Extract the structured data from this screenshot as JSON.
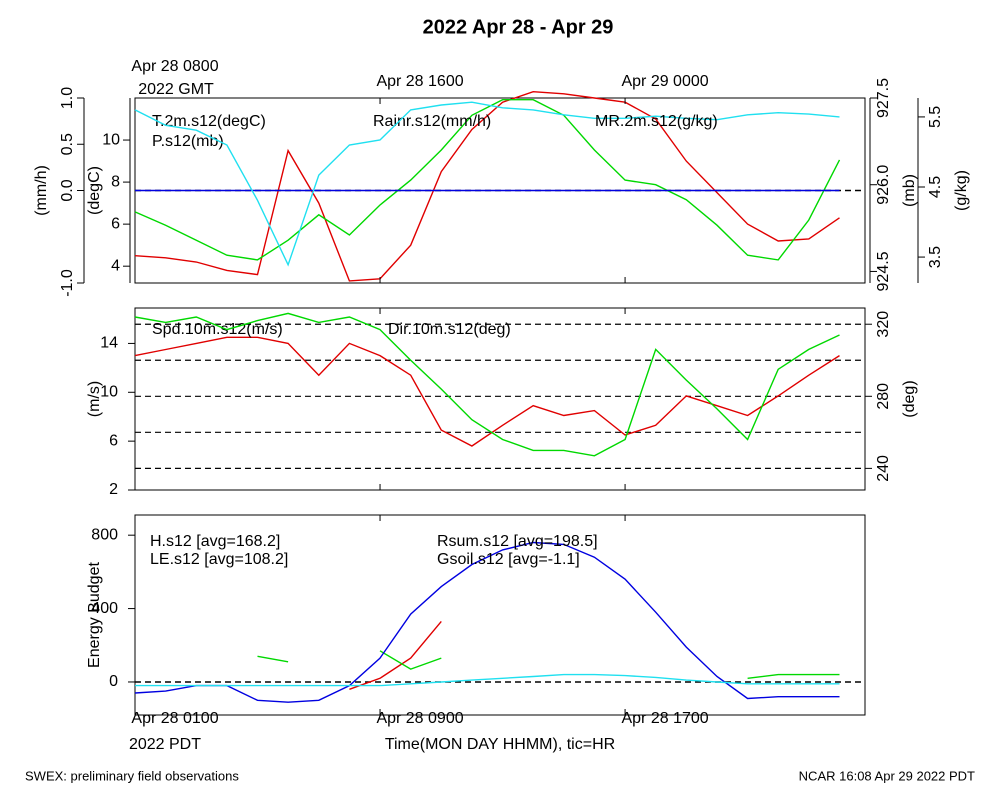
{
  "title": "2022 Apr 28 - Apr 29",
  "xlabel": "Time(MON DAY HHMM), tic=HR",
  "time_zone": "2022 PDT",
  "top_time_zone": "2022 GMT",
  "footer_left": "SWEX: preliminary field observations",
  "footer_right": "NCAR 16:08 Apr 29 2022 PDT",
  "xlim": [
    "Apr 28 0100",
    "Apr 29 0050"
  ],
  "xticks": [
    "Apr 28 0100",
    "Apr 28 0900",
    "Apr 28 1700"
  ],
  "top_xticks": [
    {
      "value": "Apr 28 0100",
      "label": "Apr 28 0800"
    },
    {
      "value": "Apr 28 0900",
      "label": "Apr 28 1600"
    },
    {
      "value": "Apr 28 1700",
      "label": "Apr 29 0000"
    }
  ],
  "chart_data": [
    {
      "type": "line",
      "x": [
        "Apr 28 0100",
        "Apr 28 0200",
        "Apr 28 0300",
        "Apr 28 0400",
        "Apr 28 0500",
        "Apr 28 0600",
        "Apr 28 0700",
        "Apr 28 0800",
        "Apr 28 0900",
        "Apr 28 1000",
        "Apr 28 1100",
        "Apr 28 1200",
        "Apr 28 1300",
        "Apr 28 1400",
        "Apr 28 1500",
        "Apr 28 1600",
        "Apr 28 1700",
        "Apr 28 1800",
        "Apr 28 1900",
        "Apr 28 2000",
        "Apr 28 2100",
        "Apr 28 2200",
        "Apr 28 2300",
        "Apr 29 0000"
      ],
      "axes": [
        {
          "label": "(mm/h)",
          "ylim": [
            -1,
            1
          ],
          "yticks": [
            {
              "value": -1,
              "label": "-1.0"
            },
            {
              "value": 0,
              "label": "0.0"
            },
            0.5,
            {
              "value": 1,
              "label": "1.0"
            }
          ]
        },
        {
          "label": "(degC)",
          "ylim": [
            3.2,
            12
          ],
          "yticks": [
            4,
            6,
            8,
            10
          ]
        },
        {
          "label": "(mb)",
          "ylim": [
            924.3,
            927.5
          ],
          "yticks": [
            924.5,
            {
              "value": 926,
              "label": "926.0"
            },
            927.5
          ]
        },
        {
          "label": "(g/kg)",
          "ylim": [
            3.13,
            5.77
          ],
          "yticks": [
            3.5,
            4.5,
            5.5
          ]
        }
      ],
      "hlines": [
        {
          "axis": 0,
          "value": 0
        }
      ],
      "series": [
        {
          "name": "T.2m.s12(degC)",
          "color": "#e00000",
          "axis": 1,
          "values": [
            4.5,
            4.4,
            4.2,
            3.8,
            3.6,
            9.5,
            7,
            3.3,
            3.4,
            5,
            8.5,
            10.5,
            11.8,
            12.3,
            12.2,
            12,
            11.8,
            11,
            9,
            7.5,
            6,
            5.2,
            5.3,
            6.3
          ]
        },
        {
          "name": "P.s12(mb)",
          "color": "#00d800",
          "axis": 2,
          "values": [
            925.53,
            925.3,
            925.04,
            924.78,
            924.7,
            925.04,
            925.48,
            925.13,
            925.65,
            926.08,
            926.6,
            927.2,
            927.47,
            927.47,
            927.2,
            926.6,
            926.08,
            926,
            925.74,
            925.3,
            924.78,
            924.7,
            925.39,
            926.43
          ]
        },
        {
          "name": "Rainr.s12(mm/h)",
          "color": "#0000e0",
          "axis": 0,
          "values": [
            0,
            0,
            0,
            0,
            0,
            0,
            0,
            0,
            0,
            0,
            0,
            0,
            0,
            0,
            0,
            0,
            0,
            0,
            0,
            0,
            0,
            0,
            0,
            0
          ]
        },
        {
          "name": "MR.2m.s12(g/kg)",
          "color": "#20e0f0",
          "axis": 3,
          "values": [
            5.6,
            5.38,
            5.31,
            5.1,
            4.31,
            3.39,
            4.67,
            5.1,
            5.17,
            5.6,
            5.67,
            5.71,
            5.63,
            5.6,
            5.53,
            5.48,
            5.48,
            5.51,
            5.48,
            5.46,
            5.53,
            5.56,
            5.54,
            5.5
          ]
        }
      ]
    },
    {
      "type": "line",
      "x": [
        "Apr 28 0100",
        "Apr 28 0200",
        "Apr 28 0300",
        "Apr 28 0400",
        "Apr 28 0500",
        "Apr 28 0600",
        "Apr 28 0700",
        "Apr 28 0800",
        "Apr 28 0900",
        "Apr 28 1000",
        "Apr 28 1100",
        "Apr 28 1200",
        "Apr 28 1300",
        "Apr 28 1400",
        "Apr 28 1500",
        "Apr 28 1600",
        "Apr 28 1700",
        "Apr 28 1800",
        "Apr 28 1900",
        "Apr 28 2000",
        "Apr 28 2100",
        "Apr 28 2200",
        "Apr 28 2300",
        "Apr 29 0000"
      ],
      "axes": [
        {
          "label": "(m/s)",
          "ylim": [
            2,
            16.9
          ],
          "yticks": [
            2,
            6,
            10,
            14
          ]
        },
        {
          "label": "(deg)",
          "ylim": [
            228,
            329
          ],
          "yticks": [
            240,
            280,
            320
          ]
        }
      ],
      "grid_axis": 1,
      "grid": [
        240,
        260,
        280,
        300,
        320
      ],
      "series": [
        {
          "name": "Spd.10m.s12(m/s)",
          "color": "#e00000",
          "axis": 0,
          "values": [
            13,
            13.5,
            14,
            14.5,
            14.5,
            14,
            11.4,
            14,
            13,
            11.4,
            6.9,
            5.6,
            7.3,
            8.9,
            8.1,
            8.5,
            6.5,
            7.3,
            9.7,
            8.9,
            8.1,
            9.7,
            11.4,
            13
          ]
        },
        {
          "name": "Dir.10m.s12(deg)",
          "color": "#00d800",
          "axis": 1,
          "values": [
            324,
            321,
            324,
            317,
            322,
            326,
            321,
            324,
            317,
            300,
            284,
            267,
            256,
            250,
            250,
            247,
            256,
            306,
            289,
            273,
            256,
            295,
            306,
            314
          ]
        }
      ]
    },
    {
      "type": "line",
      "x": [
        "Apr 28 0100",
        "Apr 28 0200",
        "Apr 28 0300",
        "Apr 28 0400",
        "Apr 28 0500",
        "Apr 28 0600",
        "Apr 28 0700",
        "Apr 28 0800",
        "Apr 28 0900",
        "Apr 28 1000",
        "Apr 28 1100",
        "Apr 28 1200",
        "Apr 28 1300",
        "Apr 28 1400",
        "Apr 28 1500",
        "Apr 28 1600",
        "Apr 28 1700",
        "Apr 28 1800",
        "Apr 28 1900",
        "Apr 28 2000",
        "Apr 28 2100",
        "Apr 28 2200",
        "Apr 28 2300",
        "Apr 29 0000"
      ],
      "axes": [
        {
          "label": "Energy Budget",
          "ylim": [
            -180,
            910
          ],
          "yticks": [
            0,
            400,
            800
          ]
        }
      ],
      "hlines": [
        {
          "axis": 0,
          "value": 0
        }
      ],
      "series": [
        {
          "name": "H.s12 [avg=168.2]",
          "color": "#e00000",
          "axis": 0,
          "values": [
            null,
            null,
            null,
            null,
            null,
            null,
            null,
            -40,
            20,
            130,
            330,
            null,
            null,
            null,
            null,
            null,
            null,
            null,
            null,
            null,
            null,
            null,
            null,
            null
          ]
        },
        {
          "name": "LE.s12 [avg=108.2]",
          "color": "#00d800",
          "axis": 0,
          "values": [
            null,
            null,
            null,
            null,
            140,
            110,
            null,
            null,
            170,
            70,
            130,
            null,
            null,
            null,
            null,
            null,
            null,
            null,
            null,
            null,
            20,
            40,
            40,
            40
          ]
        },
        {
          "name": "Rsum.s12 [avg=198.5]",
          "color": "#0000e0",
          "axis": 0,
          "values": [
            -60,
            -50,
            -20,
            -20,
            -100,
            -110,
            -100,
            -20,
            130,
            370,
            520,
            640,
            720,
            760,
            750,
            680,
            560,
            380,
            190,
            30,
            -90,
            -80,
            -80,
            -80
          ]
        },
        {
          "name": "Gsoil.s12 [avg=-1.1]",
          "color": "#20e0f0",
          "axis": 0,
          "values": [
            -20,
            -20,
            -20,
            -20,
            -20,
            -20,
            -20,
            -20,
            -20,
            -10,
            0,
            10,
            20,
            30,
            40,
            40,
            35,
            25,
            10,
            0,
            -10,
            -10,
            -10,
            -10
          ]
        }
      ]
    }
  ]
}
